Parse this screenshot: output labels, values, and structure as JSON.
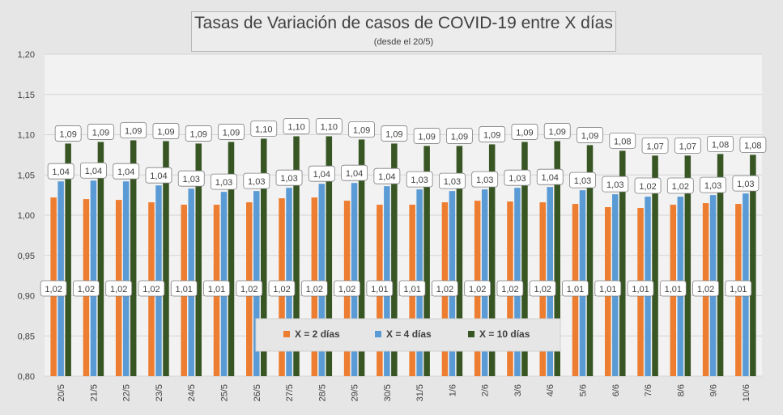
{
  "chart_data": {
    "type": "bar",
    "title": "Tasas de Variación de casos de COVID-19 entre X días",
    "subtitle": "(desde el 20/5)",
    "xlabel": "",
    "ylabel": "",
    "ylim": [
      0.8,
      1.2
    ],
    "yticks": [
      "0,80",
      "0,85",
      "0,90",
      "0,95",
      "1,00",
      "1,05",
      "1,10",
      "1,15",
      "1,20"
    ],
    "grid": true,
    "legend_position": "bottom-center",
    "categories": [
      "20/5",
      "21/5",
      "22/5",
      "23/5",
      "24/5",
      "25/5",
      "26/5",
      "27/5",
      "28/5",
      "29/5",
      "30/5",
      "31/5",
      "1/6",
      "2/6",
      "3/6",
      "4/6",
      "5/6",
      "6/6",
      "7/6",
      "8/6",
      "9/6",
      "10/6"
    ],
    "series": [
      {
        "name": "X = 2 días",
        "color": "#ed7d31",
        "values": [
          1.022,
          1.02,
          1.019,
          1.016,
          1.013,
          1.013,
          1.016,
          1.021,
          1.022,
          1.018,
          1.013,
          1.013,
          1.016,
          1.018,
          1.017,
          1.016,
          1.014,
          1.01,
          1.009,
          1.013,
          1.015,
          1.014
        ],
        "labels": [
          "1,02",
          "1,02",
          "1,02",
          "1,02",
          "1,01",
          "1,01",
          "1,02",
          "1,02",
          "1,02",
          "1,02",
          "1,01",
          "1,01",
          "1,02",
          "1,02",
          "1,02",
          "1,02",
          "1,01",
          "1,01",
          "1,01",
          "1,01",
          "1,02",
          "1,01"
        ]
      },
      {
        "name": "X = 4 días",
        "color": "#5b9bd5",
        "values": [
          1.042,
          1.043,
          1.042,
          1.037,
          1.033,
          1.029,
          1.03,
          1.034,
          1.039,
          1.04,
          1.036,
          1.032,
          1.03,
          1.032,
          1.034,
          1.035,
          1.031,
          1.026,
          1.023,
          1.023,
          1.025,
          1.027
        ],
        "labels": [
          "1,04",
          "1,04",
          "1,04",
          "1,04",
          "1,03",
          "1,03",
          "1,03",
          "1,03",
          "1,04",
          "1,04",
          "1,04",
          "1,03",
          "1,03",
          "1,03",
          "1,03",
          "1,04",
          "1,03",
          "1,03",
          "1,02",
          "1,02",
          "1,03",
          "1,03"
        ]
      },
      {
        "name": "X = 10 días",
        "color": "#375623",
        "values": [
          1.089,
          1.091,
          1.093,
          1.092,
          1.089,
          1.091,
          1.095,
          1.098,
          1.098,
          1.094,
          1.089,
          1.086,
          1.086,
          1.088,
          1.091,
          1.092,
          1.087,
          1.08,
          1.074,
          1.074,
          1.076,
          1.075
        ],
        "labels": [
          "1,09",
          "1,09",
          "1,09",
          "1,09",
          "1,09",
          "1,09",
          "1,10",
          "1,10",
          "1,10",
          "1,09",
          "1,09",
          "1,09",
          "1,09",
          "1,09",
          "1,09",
          "1,09",
          "1,09",
          "1,08",
          "1,07",
          "1,07",
          "1,08",
          "1,08"
        ]
      }
    ]
  }
}
